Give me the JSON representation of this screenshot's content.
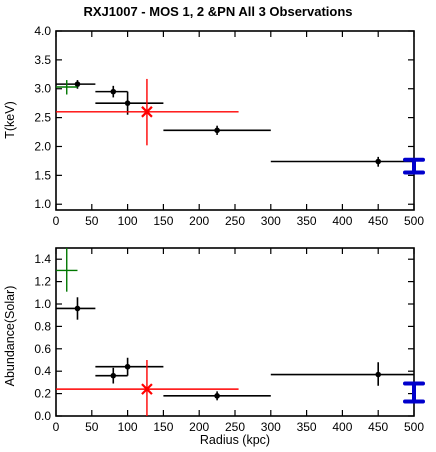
{
  "chart_data": [
    {
      "type": "scatter",
      "title": "RXJ1007 - MOS 1, 2 &PN All 3 Observations",
      "xlabel": "",
      "ylabel": "T(keV)",
      "xlim": [
        0,
        500
      ],
      "ylim": [
        0.9,
        4.0
      ],
      "yticks": [
        "1.0",
        "1.5",
        "2.0",
        "2.5",
        "3.0",
        "3.5",
        "4.0"
      ],
      "xticks": [
        "0",
        "50",
        "100",
        "150",
        "200",
        "250",
        "300",
        "350",
        "400",
        "450",
        "500"
      ],
      "series": [
        {
          "color": "#000000",
          "points": [
            {
              "x": 30,
              "y": 3.08,
              "xerr": [
                0,
                55
              ],
              "yerr": [
                3.0,
                3.15
              ]
            },
            {
              "x": 80,
              "y": 2.95,
              "xerr": [
                55,
                100
              ],
              "yerr": [
                2.85,
                3.05
              ]
            },
            {
              "x": 100,
              "y": 2.75,
              "xerr": [
                55,
                150
              ],
              "yerr": [
                2.55,
                2.95
              ]
            },
            {
              "x": 225,
              "y": 2.28,
              "xerr": [
                150,
                300
              ],
              "yerr": [
                2.2,
                2.36
              ]
            },
            {
              "x": 450,
              "y": 1.74,
              "xerr": [
                300,
                500
              ],
              "yerr": [
                1.65,
                1.82
              ]
            }
          ]
        },
        {
          "color": "#007700",
          "points": [
            {
              "x": 15,
              "y": 3.03,
              "xerr": [
                0,
                30
              ],
              "yerr": [
                2.9,
                3.15
              ]
            }
          ]
        },
        {
          "color": "#ff0000",
          "marker": "x",
          "points": [
            {
              "x": 127,
              "y": 2.6,
              "xerr": [
                0,
                255
              ],
              "yerr": [
                2.02,
                3.17
              ]
            }
          ]
        },
        {
          "color": "#0000cc",
          "marker": "range-bar",
          "points": [
            {
              "x": 500,
              "ylow": 1.55,
              "yhigh": 1.77
            }
          ]
        }
      ]
    },
    {
      "type": "scatter",
      "title": "",
      "xlabel": "Radius (kpc)",
      "ylabel": "Abundance(Solar)",
      "xlim": [
        0,
        500
      ],
      "ylim": [
        0,
        1.5
      ],
      "yticks": [
        "0.0",
        "0.2",
        "0.4",
        "0.6",
        "0.8",
        "1.0",
        "1.2",
        "1.4"
      ],
      "xticks": [
        "0",
        "50",
        "100",
        "150",
        "200",
        "250",
        "300",
        "350",
        "400",
        "450",
        "500"
      ],
      "series": [
        {
          "color": "#000000",
          "points": [
            {
              "x": 30,
              "y": 0.96,
              "xerr": [
                0,
                55
              ],
              "yerr": [
                0.86,
                1.06
              ]
            },
            {
              "x": 80,
              "y": 0.36,
              "xerr": [
                55,
                100
              ],
              "yerr": [
                0.29,
                0.43
              ]
            },
            {
              "x": 100,
              "y": 0.44,
              "xerr": [
                55,
                150
              ],
              "yerr": [
                0.36,
                0.52
              ]
            },
            {
              "x": 225,
              "y": 0.18,
              "xerr": [
                150,
                300
              ],
              "yerr": [
                0.14,
                0.22
              ]
            },
            {
              "x": 450,
              "y": 0.37,
              "xerr": [
                300,
                500
              ],
              "yerr": [
                0.27,
                0.48
              ]
            }
          ]
        },
        {
          "color": "#007700",
          "points": [
            {
              "x": 15,
              "y": 1.3,
              "xerr": [
                0,
                30
              ],
              "yerr": [
                1.11,
                1.5
              ]
            }
          ]
        },
        {
          "color": "#ff0000",
          "marker": "x",
          "points": [
            {
              "x": 127,
              "y": 0.24,
              "xerr": [
                0,
                255
              ],
              "yerr": [
                0,
                0.5
              ]
            }
          ]
        },
        {
          "color": "#0000cc",
          "marker": "range-bar",
          "points": [
            {
              "x": 500,
              "ylow": 0.13,
              "yhigh": 0.29
            }
          ]
        }
      ]
    }
  ]
}
